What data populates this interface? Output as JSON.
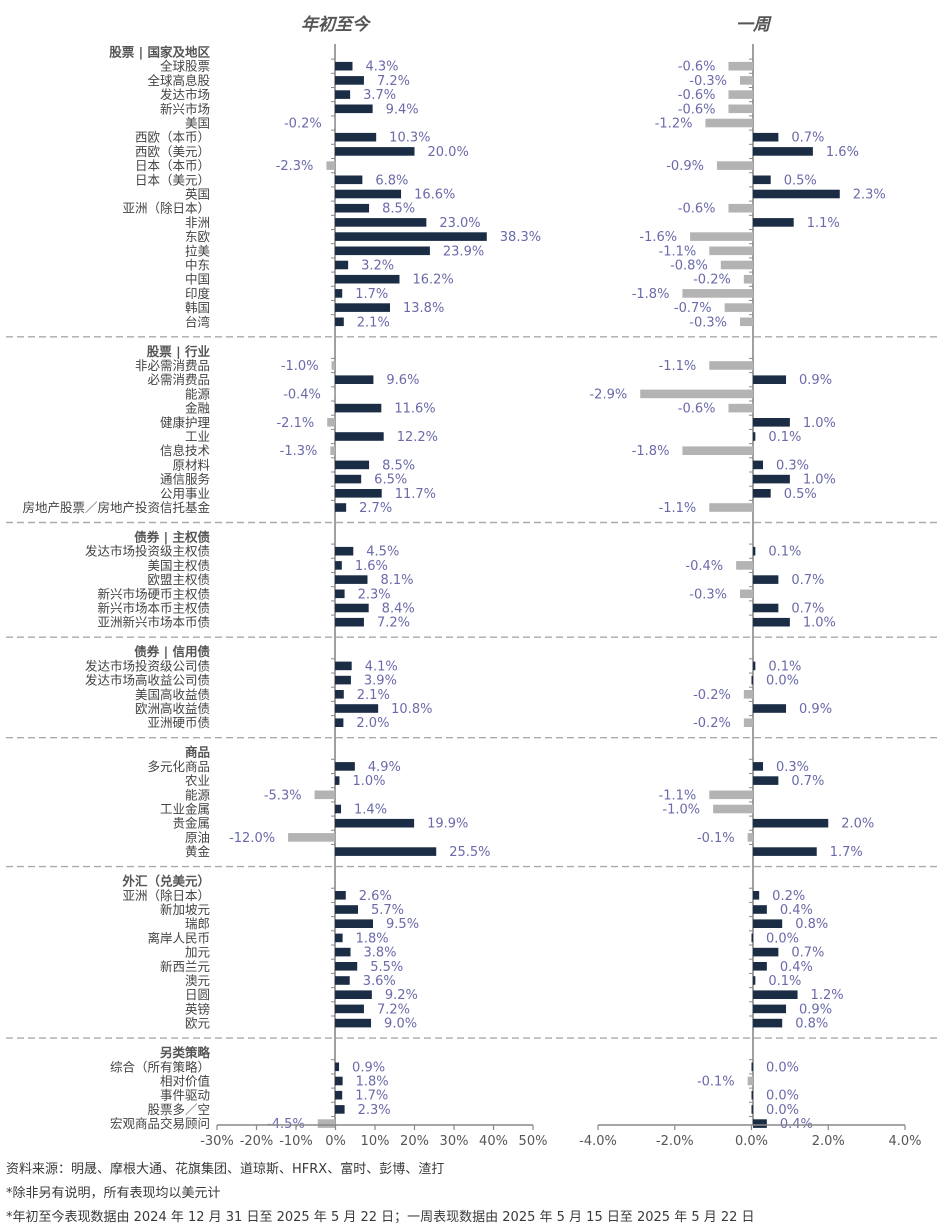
{
  "chart_data": {
    "type": "bar",
    "orientation": "horizontal",
    "colors": {
      "positive": "#1b2d44",
      "negative": "#b3b3b3",
      "value_label": "#6a6aaa",
      "section_title": "#555555",
      "axis": "#888888",
      "divider": "#aaaaaa"
    },
    "panels": [
      {
        "title": "年初至今",
        "unit": "%",
        "xlim": [
          -30,
          50
        ],
        "ticks": [
          -30,
          -20,
          -10,
          0,
          10,
          20,
          30,
          40,
          50
        ],
        "tick_labels": [
          "-30%",
          "-20%",
          "-10%",
          "0%",
          "10%",
          "20%",
          "30%",
          "40%",
          "50%"
        ]
      },
      {
        "title": "一周",
        "unit": "%",
        "xlim": [
          -4,
          4
        ],
        "ticks": [
          -4,
          -2,
          0,
          2,
          4
        ],
        "tick_labels": [
          "-4.0%",
          "-2.0%",
          "0.0%",
          "2.0%",
          "4.0%"
        ]
      }
    ],
    "sections": [
      {
        "title": "股票 | 国家及地区",
        "rows": [
          {
            "label": "全球股票",
            "ytd": 4.3,
            "week": -0.6
          },
          {
            "label": "全球高息股",
            "ytd": 7.2,
            "week": -0.3
          },
          {
            "label": "发达市场",
            "ytd": 3.7,
            "week": -0.6
          },
          {
            "label": "新兴市场",
            "ytd": 9.4,
            "week": -0.6
          },
          {
            "label": "美国",
            "ytd": -0.2,
            "week": -1.2
          },
          {
            "label": "西欧（本币）",
            "ytd": 10.3,
            "week": 0.7
          },
          {
            "label": "西欧（美元）",
            "ytd": 20.0,
            "week": 1.6
          },
          {
            "label": "日本（本币）",
            "ytd": -2.3,
            "week": -0.9
          },
          {
            "label": "日本（美元）",
            "ytd": 6.8,
            "week": 0.5
          },
          {
            "label": "英国",
            "ytd": 16.6,
            "week": 2.3
          },
          {
            "label": "亚洲（除日本）",
            "ytd": 8.5,
            "week": -0.6
          },
          {
            "label": "非洲",
            "ytd": 23.0,
            "week": 1.1
          },
          {
            "label": "东欧",
            "ytd": 38.3,
            "week": -1.6
          },
          {
            "label": "拉美",
            "ytd": 23.9,
            "week": -1.1
          },
          {
            "label": "中东",
            "ytd": 3.2,
            "week": -0.8
          },
          {
            "label": "中国",
            "ytd": 16.2,
            "week": -0.2
          },
          {
            "label": "印度",
            "ytd": 1.7,
            "week": -1.8
          },
          {
            "label": "韩国",
            "ytd": 13.8,
            "week": -0.7
          },
          {
            "label": "台湾",
            "ytd": 2.1,
            "week": -0.3
          }
        ]
      },
      {
        "title": "股票 | 行业",
        "rows": [
          {
            "label": "非必需消费品",
            "ytd": -1.0,
            "week": -1.1
          },
          {
            "label": "必需消费品",
            "ytd": 9.6,
            "week": 0.9
          },
          {
            "label": "能源",
            "ytd": -0.4,
            "week": -2.9
          },
          {
            "label": "金融",
            "ytd": 11.6,
            "week": -0.6
          },
          {
            "label": "健康护理",
            "ytd": -2.1,
            "week": 1.0
          },
          {
            "label": "工业",
            "ytd": 12.2,
            "week": 0.1
          },
          {
            "label": "信息技术",
            "ytd": -1.3,
            "week": -1.8
          },
          {
            "label": "原材料",
            "ytd": 8.5,
            "week": 0.3
          },
          {
            "label": "通信服务",
            "ytd": 6.5,
            "week": 1.0
          },
          {
            "label": "公用事业",
            "ytd": 11.7,
            "week": 0.5
          },
          {
            "label": "房地产股票／房地产投资信托基金",
            "ytd": 2.7,
            "week": -1.1
          }
        ]
      },
      {
        "title": "债券 | 主权债",
        "rows": [
          {
            "label": "发达市场投资级主权债",
            "ytd": 4.5,
            "week": 0.1
          },
          {
            "label": "美国主权债",
            "ytd": 1.6,
            "week": -0.4
          },
          {
            "label": "欧盟主权债",
            "ytd": 8.1,
            "week": 0.7
          },
          {
            "label": "新兴市场硬币主权债",
            "ytd": 2.3,
            "week": -0.3
          },
          {
            "label": "新兴市场本币主权债",
            "ytd": 8.4,
            "week": 0.7
          },
          {
            "label": "亚洲新兴市场本币债",
            "ytd": 7.2,
            "week": 1.0
          }
        ]
      },
      {
        "title": "债券 | 信用债",
        "rows": [
          {
            "label": "发达市场投资级公司债",
            "ytd": 4.1,
            "week": 0.1
          },
          {
            "label": "发达市场高收益公司债",
            "ytd": 3.9,
            "week": 0.0
          },
          {
            "label": "美国高收益债",
            "ytd": 2.1,
            "week": -0.2
          },
          {
            "label": "欧洲高收益债",
            "ytd": 10.8,
            "week": 0.9
          },
          {
            "label": "亚洲硬币债",
            "ytd": 2.0,
            "week": -0.2
          }
        ]
      },
      {
        "title": "商品",
        "rows": [
          {
            "label": "多元化商品",
            "ytd": 4.9,
            "week": 0.3
          },
          {
            "label": "农业",
            "ytd": 1.0,
            "week": 0.7
          },
          {
            "label": "能源",
            "ytd": -5.3,
            "week": -1.1
          },
          {
            "label": "工业金属",
            "ytd": 1.4,
            "week": -1.0
          },
          {
            "label": "贵金属",
            "ytd": 19.9,
            "week": 2.0
          },
          {
            "label": "原油",
            "ytd": -12.0,
            "week": -0.1
          },
          {
            "label": "黄金",
            "ytd": 25.5,
            "week": 1.7
          }
        ]
      },
      {
        "title": "外汇（兑美元）",
        "rows": [
          {
            "label": "亚洲（除日本）",
            "ytd": 2.6,
            "week": 0.2
          },
          {
            "label": "新加坡元",
            "ytd": 5.7,
            "week": 0.4
          },
          {
            "label": "瑞郎",
            "ytd": 9.5,
            "week": 0.8
          },
          {
            "label": "离岸人民币",
            "ytd": 1.8,
            "week": 0.0
          },
          {
            "label": "加元",
            "ytd": 3.8,
            "week": 0.7
          },
          {
            "label": "新西兰元",
            "ytd": 5.5,
            "week": 0.4
          },
          {
            "label": "澳元",
            "ytd": 3.6,
            "week": 0.1
          },
          {
            "label": "日圆",
            "ytd": 9.2,
            "week": 1.2
          },
          {
            "label": "英镑",
            "ytd": 7.2,
            "week": 0.9
          },
          {
            "label": "欧元",
            "ytd": 9.0,
            "week": 0.8
          }
        ]
      },
      {
        "title": "另类策略",
        "rows": [
          {
            "label": "综合（所有策略）",
            "ytd": 0.9,
            "week": 0.0
          },
          {
            "label": "相对价值",
            "ytd": 1.8,
            "week": -0.1
          },
          {
            "label": "事件驱动",
            "ytd": 1.7,
            "week": 0.0
          },
          {
            "label": "股票多／空",
            "ytd": 2.3,
            "week": 0.0
          },
          {
            "label": "宏观商品交易顾问",
            "ytd": -4.5,
            "week": 0.4
          }
        ]
      }
    ]
  },
  "footnotes": [
    "资料来源：明晟、摩根大通、花旗集团、道琼斯、HFRX、富时、彭博、渣打",
    "*除非另有说明，所有表现均以美元计",
    "*年初至今表现数据由 2024 年 12 月 31 日至 2025 年 5 月 22 日；一周表现数据由 2025 年 5 月 15 日至 2025 年 5 月 22 日"
  ]
}
